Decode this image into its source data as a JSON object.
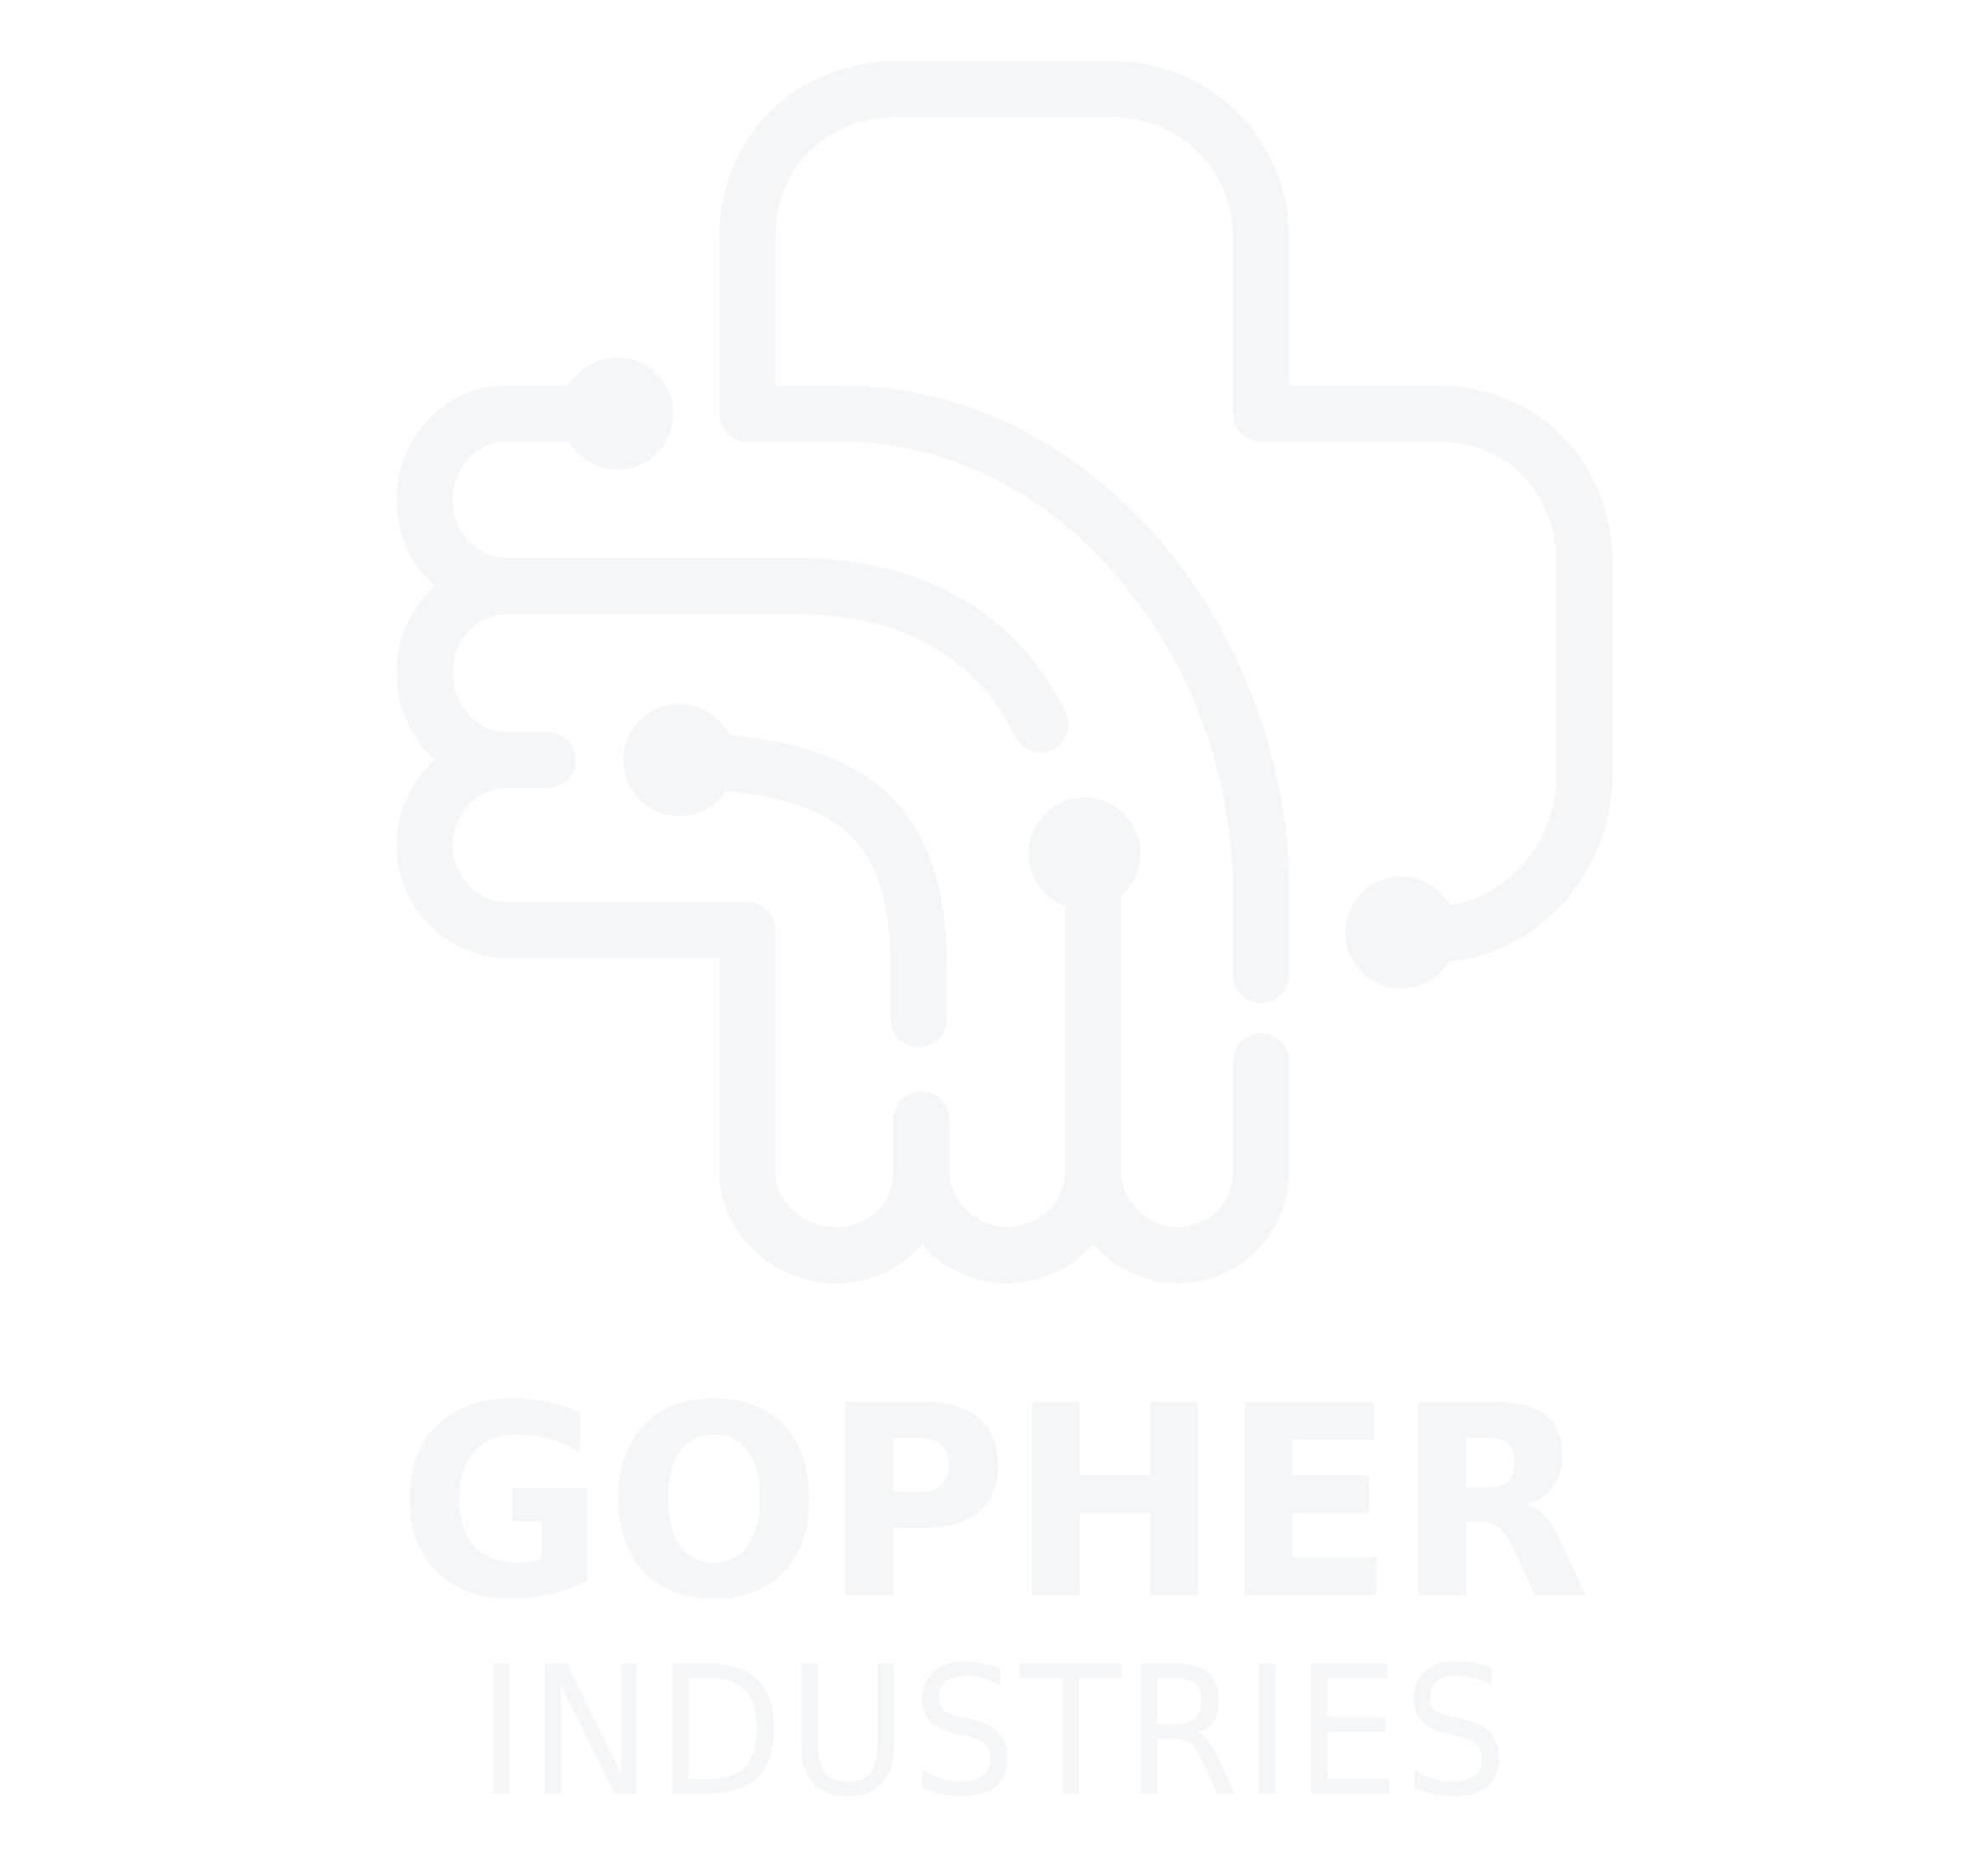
{
  "brand": {
    "name_primary": "GOPHER",
    "name_secondary": "INDUSTRIES"
  },
  "colors": {
    "background": "#ffffff",
    "mark": "#f5f6f8",
    "text": "#f5f6f8"
  },
  "logo": {
    "icon": "circuit-gopher-icon"
  }
}
